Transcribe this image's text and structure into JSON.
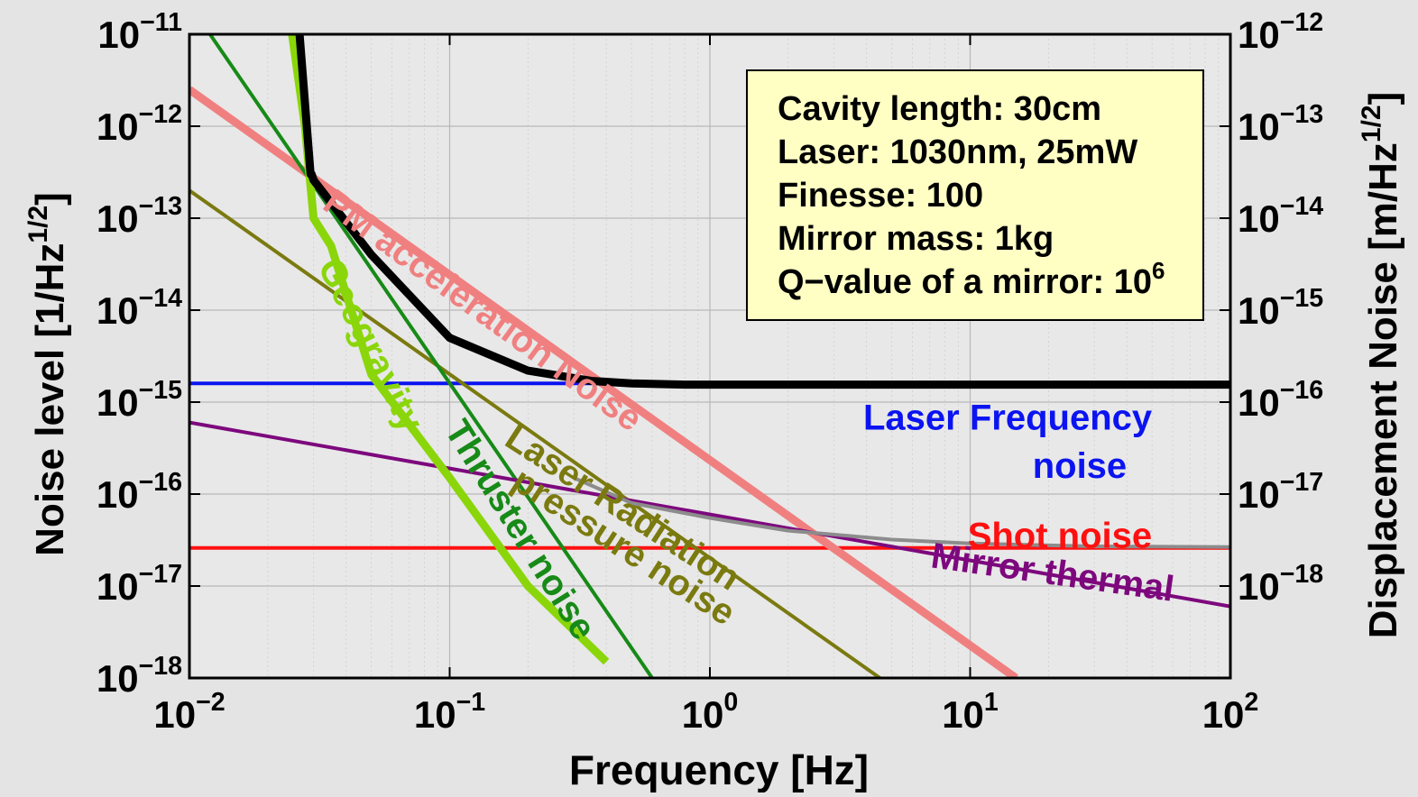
{
  "chart_data": {
    "type": "line",
    "xlabel": "Frequency   [Hz]",
    "ylabel": "Noise level   [1/Hz",
    "ylabel_sup": "1/2",
    "ylabel_close": "]",
    "ylabel_right": "Displacement Noise   [m/Hz",
    "ylabel_right_sup": "1/2",
    "ylabel_right_close": "]",
    "x_scale": "log",
    "y_scale": "log",
    "xlim": [
      0.01,
      100
    ],
    "ylim": [
      1e-18,
      1e-11
    ],
    "ylim_right": [
      1e-18,
      1e-11
    ],
    "grid": true,
    "x_ticks": [
      {
        "base": "10",
        "exp": "−2"
      },
      {
        "base": "10",
        "exp": "−1"
      },
      {
        "base": "10",
        "exp": "0"
      },
      {
        "base": "10",
        "exp": "1"
      },
      {
        "base": "10",
        "exp": "2"
      }
    ],
    "y_ticks": [
      {
        "base": "10",
        "exp": "−18"
      },
      {
        "base": "10",
        "exp": "−17"
      },
      {
        "base": "10",
        "exp": "−16"
      },
      {
        "base": "10",
        "exp": "−15"
      },
      {
        "base": "10",
        "exp": "−14"
      },
      {
        "base": "10",
        "exp": "−13"
      },
      {
        "base": "10",
        "exp": "−12"
      },
      {
        "base": "10",
        "exp": "−11"
      }
    ],
    "y_ticks_right": [
      {
        "value": 1e-17,
        "base": "10",
        "exp": "−18"
      },
      {
        "value": 1e-16,
        "base": "10",
        "exp": "−17"
      },
      {
        "value": 1e-15,
        "base": "10",
        "exp": "−16"
      },
      {
        "value": 1e-14,
        "base": "10",
        "exp": "−15"
      },
      {
        "value": 1e-13,
        "base": "10",
        "exp": "−14"
      },
      {
        "value": 1e-12,
        "base": "10",
        "exp": "−13"
      },
      {
        "value": 1e-11,
        "base": "10",
        "exp": "−12"
      }
    ],
    "series": [
      {
        "name": "Laser Frequency noise",
        "color": "#0b14f0",
        "width": 4,
        "x": [
          0.01,
          100
        ],
        "y": [
          1.6e-15,
          1.6e-15
        ]
      },
      {
        "name": "Shot noise",
        "color": "#ff1010",
        "width": 4,
        "x": [
          0.01,
          100
        ],
        "y": [
          2.6e-17,
          2.6e-17
        ]
      },
      {
        "name": "PM acceleration Noise",
        "color": "#f08080",
        "width": 9,
        "x": [
          0.01,
          15
        ],
        "y": [
          2.5e-12,
          1e-18
        ]
      },
      {
        "name": "Laser Radiation pressure noise",
        "color": "#7a7a10",
        "width": 4,
        "x": [
          0.01,
          4.5
        ],
        "y": [
          2e-13,
          1e-18
        ]
      },
      {
        "name": "Thruster noise",
        "color": "#178a17",
        "width": 4,
        "x": [
          0.012,
          0.6
        ],
        "y": [
          1e-11,
          1e-18
        ]
      },
      {
        "name": "Mirror thermal",
        "color": "#7d087d",
        "width": 4,
        "x": [
          0.01,
          100
        ],
        "y": [
          6e-16,
          6e-18
        ]
      },
      {
        "name": "Geogravity",
        "color": "#8ad60a",
        "width": 9,
        "x": [
          0.0248,
          0.0278,
          0.03,
          0.035,
          0.05,
          0.1,
          0.2,
          0.4
        ],
        "y": [
          1e-11,
          1e-12,
          1e-13,
          5e-14,
          2e-15,
          1.5e-16,
          1e-17,
          1.5e-18
        ]
      },
      {
        "name": "",
        "color": "#8c8c8c",
        "width": 4,
        "x": [
          0.3,
          0.5,
          1,
          2,
          5,
          10,
          30,
          100
        ],
        "y": [
          1.5e-16,
          8e-17,
          5.5e-17,
          4e-17,
          3.2e-17,
          2.9e-17,
          2.7e-17,
          2.65e-17
        ]
      },
      {
        "name": "",
        "color": "#000000",
        "width": 9,
        "x": [
          0.0265,
          0.0292,
          0.0295,
          0.03,
          0.05,
          0.1,
          0.2,
          0.35,
          0.5,
          0.8,
          1,
          100
        ],
        "y": [
          1e-11,
          3e-13,
          3e-13,
          2.6e-13,
          4e-14,
          5e-15,
          2.2e-15,
          1.7e-15,
          1.6e-15,
          1.55e-15,
          1.55e-15,
          1.55e-15
        ]
      }
    ],
    "annotations": [
      {
        "text": "PM acceleration Noise",
        "color": "#f08080",
        "x": 0.032,
        "y": 1.3e-13,
        "anchor": "start",
        "angle": 36
      },
      {
        "text": "Geogravity",
        "color": "#8ad60a",
        "x": 0.031,
        "y": 3e-14,
        "anchor": "start",
        "angle": 63
      },
      {
        "text": "Thruster noise",
        "color": "#178a17",
        "x": 0.095,
        "y": 5e-16,
        "anchor": "start",
        "angle": 58
      },
      {
        "text": "Laser Radiation",
        "color": "#7a7a10",
        "x": 0.16,
        "y": 3.5e-16,
        "anchor": "start",
        "angle": 33
      },
      {
        "text": "pressure noise",
        "color": "#7a7a10",
        "x": 0.17,
        "y": 1.2e-16,
        "anchor": "start",
        "angle": 33
      },
      {
        "text": "Mirror thermal",
        "color": "#7d087d",
        "x": 7,
        "y": 1.6e-17,
        "anchor": "start",
        "angle": 8
      },
      {
        "text": "Laser Frequency",
        "color": "#0b14f0",
        "x": 50,
        "y": 5e-16,
        "anchor": "end",
        "angle": 0
      },
      {
        "text": "noise",
        "color": "#0b14f0",
        "x": 40,
        "y": 1.5e-16,
        "anchor": "end",
        "angle": 0
      },
      {
        "text": "Shot noise",
        "color": "#ff1010",
        "x": 50,
        "y": 2.6e-17,
        "anchor": "end",
        "angle": 0
      }
    ],
    "info_box": {
      "lines": [
        {
          "text": "Cavity length: 30cm"
        },
        {
          "text": "Laser: 1030nm, 25mW"
        },
        {
          "text": "Finesse: 100"
        },
        {
          "text": "Mirror mass: 1kg"
        },
        {
          "text": "Q−value of a mirror: 10",
          "sup": "6"
        }
      ]
    }
  }
}
